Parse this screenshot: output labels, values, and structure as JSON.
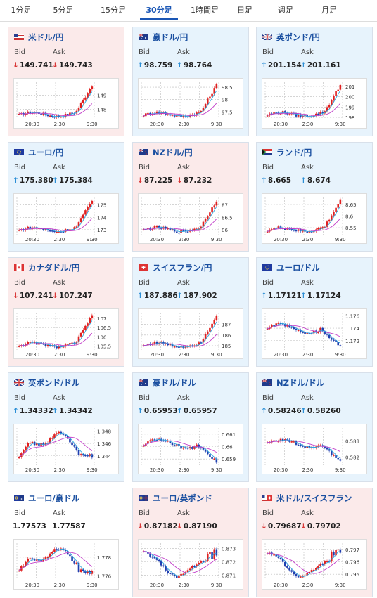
{
  "tabs": [
    {
      "label": "1分足",
      "active": false
    },
    {
      "label": "5分足",
      "active": false
    },
    {
      "label": "15分足",
      "active": false
    },
    {
      "label": "30分足",
      "active": true
    },
    {
      "label": "1時間足",
      "active": false
    },
    {
      "label": "日足",
      "active": false
    },
    {
      "label": "週足",
      "active": false
    },
    {
      "label": "月足",
      "active": false
    }
  ],
  "bid_label": "Bid",
  "ask_label": "Ask",
  "x_ticks": [
    "20:30",
    "2:30",
    "9:30"
  ],
  "colors": {
    "up_arrow": "#2c8fd6",
    "down_arrow": "#d93838",
    "up_card": "#e7f3fc",
    "down_card": "#fbeaea",
    "candle_up": "#e02020",
    "candle_down": "#1f3fb0",
    "ma_short": "#2fa8e0",
    "ma_long": "#c23fc9"
  },
  "cards": [
    {
      "pair": "米ドル/円",
      "flag": "flag-us",
      "dir": "down",
      "bid": "149.741",
      "ask": "149.743",
      "bid_arrow": "↓",
      "ask_arrow": "↓",
      "chart_data": {
        "type": "candlestick",
        "x_ticks": [
          "20:30",
          "2:30",
          "9:30"
        ],
        "y_ticks": [
          "149",
          "148"
        ],
        "ylim": [
          147.3,
          149.9
        ],
        "shape": "rise"
      }
    },
    {
      "pair": "豪ドル/円",
      "flag": "flag-au",
      "dir": "up",
      "bid": "98.759",
      "ask": "98.764",
      "bid_arrow": "↑",
      "ask_arrow": "↑",
      "chart_data": {
        "type": "candlestick",
        "x_ticks": [
          "20:30",
          "2:30",
          "9:30"
        ],
        "y_ticks": [
          "98.5",
          "98",
          "97.5"
        ],
        "ylim": [
          97.2,
          98.7
        ],
        "shape": "rise"
      }
    },
    {
      "pair": "英ポンド/円",
      "flag": "flag-gb",
      "dir": "up",
      "bid": "201.154",
      "ask": "201.161",
      "bid_arrow": "↑",
      "ask_arrow": "↑",
      "chart_data": {
        "type": "candlestick",
        "x_ticks": [
          "20:30",
          "2:30",
          "9:30"
        ],
        "y_ticks": [
          "201",
          "200",
          "199",
          "198"
        ],
        "ylim": [
          197.8,
          201.4
        ],
        "shape": "rise"
      }
    },
    {
      "pair": "ユーロ/円",
      "flag": "flag-eu",
      "dir": "up",
      "bid": "175.380",
      "ask": "175.384",
      "bid_arrow": "↑",
      "ask_arrow": "↑",
      "chart_data": {
        "type": "candlestick",
        "x_ticks": [
          "20:30",
          "2:30",
          "9:30"
        ],
        "y_ticks": [
          "175",
          "174",
          "173"
        ],
        "ylim": [
          172.6,
          175.6
        ],
        "shape": "rise"
      }
    },
    {
      "pair": "NZドル/円",
      "flag": "flag-nz",
      "dir": "down",
      "bid": "87.225",
      "ask": "87.232",
      "bid_arrow": "↓",
      "ask_arrow": "↓",
      "chart_data": {
        "type": "candlestick",
        "x_ticks": [
          "20:30",
          "2:30",
          "9:30"
        ],
        "y_ticks": [
          "87",
          "86.5",
          "86"
        ],
        "ylim": [
          85.8,
          87.3
        ],
        "shape": "rise"
      }
    },
    {
      "pair": "ランド/円",
      "flag": "flag-za",
      "dir": "up",
      "bid": "8.665",
      "ask": "8.674",
      "bid_arrow": "↑",
      "ask_arrow": "↑",
      "chart_data": {
        "type": "candlestick",
        "x_ticks": [
          "20:30",
          "2:30",
          "9:30"
        ],
        "y_ticks": [
          "8.65",
          "8.6",
          "8.55"
        ],
        "ylim": [
          8.52,
          8.68
        ],
        "shape": "rise"
      }
    },
    {
      "pair": "カナダドル/円",
      "flag": "flag-ca",
      "dir": "down",
      "bid": "107.241",
      "ask": "107.247",
      "bid_arrow": "↓",
      "ask_arrow": "↓",
      "chart_data": {
        "type": "candlestick",
        "x_ticks": [
          "20:30",
          "2:30",
          "9:30"
        ],
        "y_ticks": [
          "107",
          "106.5",
          "106",
          "105.5"
        ],
        "ylim": [
          105.3,
          107.3
        ],
        "shape": "rise"
      }
    },
    {
      "pair": "スイスフラン/円",
      "flag": "flag-ch",
      "dir": "up",
      "bid": "187.886",
      "ask": "187.902",
      "bid_arrow": "↑",
      "ask_arrow": "↑",
      "chart_data": {
        "type": "candlestick",
        "x_ticks": [
          "20:30",
          "2:30",
          "9:30"
        ],
        "y_ticks": [
          "187",
          "186",
          "185"
        ],
        "ylim": [
          184.6,
          188.1
        ],
        "shape": "rise"
      }
    },
    {
      "pair": "ユーロ/ドル",
      "flag": "flag-eu",
      "dir": "up",
      "bid": "1.17121",
      "ask": "1.17124",
      "bid_arrow": "↑",
      "ask_arrow": "↑",
      "chart_data": {
        "type": "candlestick",
        "x_ticks": [
          "20:30",
          "2:30",
          "9:30"
        ],
        "y_ticks": [
          "1.176",
          "1.174",
          "1.172"
        ],
        "ylim": [
          1.1705,
          1.1765
        ],
        "shape": "fall"
      }
    },
    {
      "pair": "英ポンド/ドル",
      "flag": "flag-gb",
      "dir": "up",
      "bid": "1.34332",
      "ask": "1.34342",
      "bid_arrow": "↑",
      "ask_arrow": "↑",
      "chart_data": {
        "type": "candlestick",
        "x_ticks": [
          "20:30",
          "2:30",
          "9:30"
        ],
        "y_ticks": [
          "1.348",
          "1.346",
          "1.344"
        ],
        "ylim": [
          1.3425,
          1.3485
        ],
        "shape": "hump"
      }
    },
    {
      "pair": "豪ドル/ドル",
      "flag": "flag-au",
      "dir": "up",
      "bid": "0.65953",
      "ask": "0.65957",
      "bid_arrow": "↑",
      "ask_arrow": "↑",
      "chart_data": {
        "type": "candlestick",
        "x_ticks": [
          "20:30",
          "2:30",
          "9:30"
        ],
        "y_ticks": [
          "0.661",
          "0.66",
          "0.659"
        ],
        "ylim": [
          0.6585,
          0.6615
        ],
        "shape": "fall"
      }
    },
    {
      "pair": "NZドル/ドル",
      "flag": "flag-nz",
      "dir": "up",
      "bid": "0.58246",
      "ask": "0.58260",
      "bid_arrow": "↑",
      "ask_arrow": "↑",
      "chart_data": {
        "type": "candlestick",
        "x_ticks": [
          "20:30",
          "2:30",
          "9:30"
        ],
        "y_ticks": [
          "0.583",
          "0.582"
        ],
        "ylim": [
          0.5815,
          0.5838
        ],
        "shape": "fall"
      }
    },
    {
      "pair": "ユーロ/豪ドル",
      "flag": "flag-euau",
      "dir": "neutral",
      "bid": "1.77573",
      "ask": "1.77587",
      "bid_arrow": "",
      "ask_arrow": "",
      "chart_data": {
        "type": "candlestick",
        "x_ticks": [
          "20:30",
          "2:30",
          "9:30"
        ],
        "y_ticks": [
          "1.778",
          "1.776"
        ],
        "ylim": [
          1.7755,
          1.7795
        ],
        "shape": "hump"
      }
    },
    {
      "pair": "ユーロ/英ポンド",
      "flag": "flag-eugb",
      "dir": "down",
      "bid": "0.87182",
      "ask": "0.87190",
      "bid_arrow": "↓",
      "ask_arrow": "↓",
      "chart_data": {
        "type": "candlestick",
        "x_ticks": [
          "20:30",
          "2:30",
          "9:30"
        ],
        "y_ticks": [
          "0.873",
          "0.872",
          "0.871"
        ],
        "ylim": [
          0.8706,
          0.8734
        ],
        "shape": "dip"
      }
    },
    {
      "pair": "米ドル/スイスフラン",
      "flag": "flag-usch",
      "dir": "down",
      "bid": "0.79687",
      "ask": "0.79702",
      "bid_arrow": "↓",
      "ask_arrow": "↓",
      "chart_data": {
        "type": "candlestick",
        "x_ticks": [
          "20:30",
          "2:30",
          "9:30"
        ],
        "y_ticks": [
          "0.797",
          "0.796",
          "0.795"
        ],
        "ylim": [
          0.7945,
          0.7975
        ],
        "shape": "dip"
      }
    }
  ]
}
